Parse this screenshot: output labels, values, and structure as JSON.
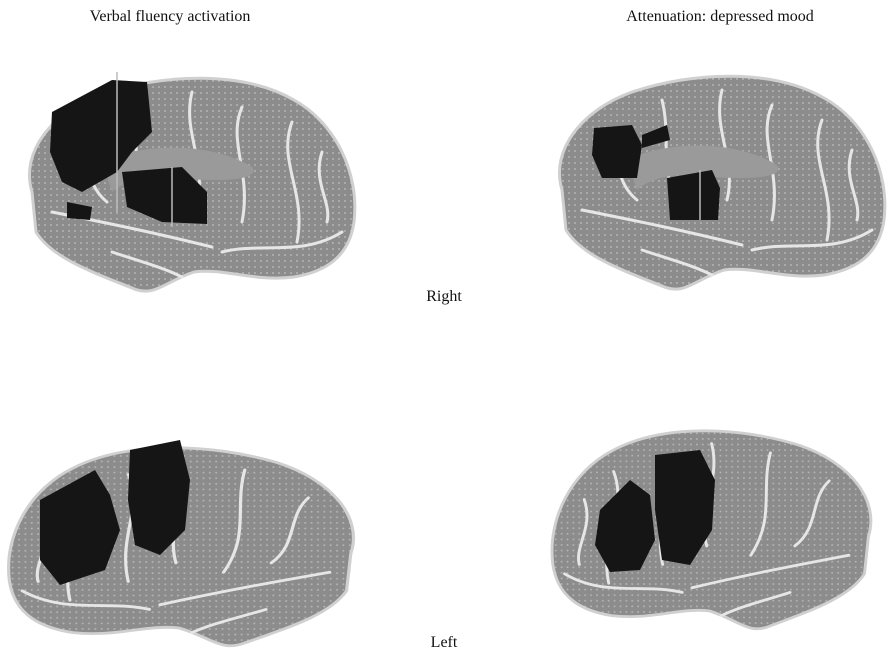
{
  "columns": [
    "Verbal fluency activation",
    "Attenuation: depressed mood"
  ],
  "rows": [
    "Right",
    "Left"
  ]
}
